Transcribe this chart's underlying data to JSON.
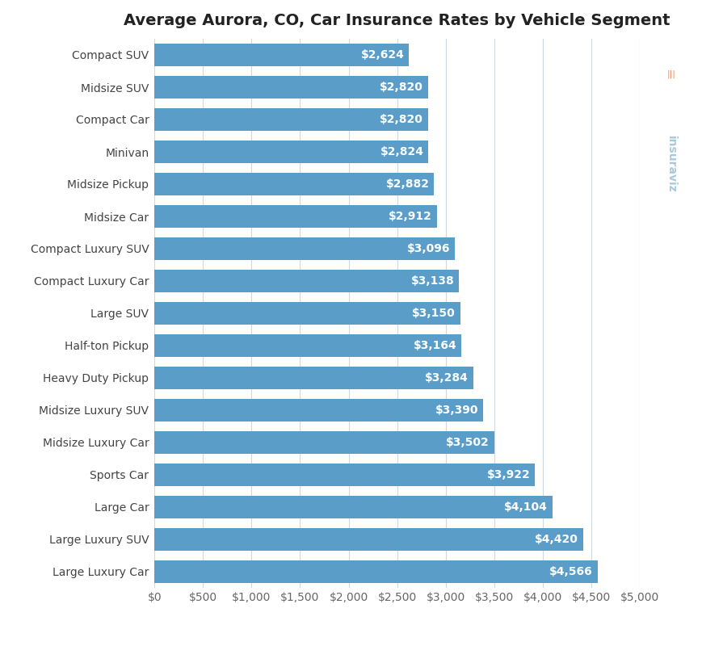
{
  "title": "Average Aurora, CO, Car Insurance Rates by Vehicle Segment",
  "categories": [
    "Large Luxury Car",
    "Large Luxury SUV",
    "Large Car",
    "Sports Car",
    "Midsize Luxury Car",
    "Midsize Luxury SUV",
    "Heavy Duty Pickup",
    "Half-ton Pickup",
    "Large SUV",
    "Compact Luxury Car",
    "Compact Luxury SUV",
    "Midsize Car",
    "Midsize Pickup",
    "Minivan",
    "Compact Car",
    "Midsize SUV",
    "Compact SUV"
  ],
  "values": [
    4566,
    4420,
    4104,
    3922,
    3502,
    3390,
    3284,
    3164,
    3150,
    3138,
    3096,
    2912,
    2882,
    2824,
    2820,
    2820,
    2624
  ],
  "bar_color": "#5b9dc9",
  "label_color": "#ffffff",
  "background_color": "#ffffff",
  "grid_color": "#d0d8e0",
  "title_fontsize": 14,
  "label_fontsize": 10,
  "tick_fontsize": 10,
  "bar_label_fontsize": 10,
  "xlim": [
    0,
    5000
  ],
  "xticks": [
    0,
    500,
    1000,
    1500,
    2000,
    2500,
    3000,
    3500,
    4000,
    4500,
    5000
  ],
  "watermark_text": "insuraviz",
  "watermark_color": "#a8c8dc",
  "watermark_accent": "#e8885a"
}
